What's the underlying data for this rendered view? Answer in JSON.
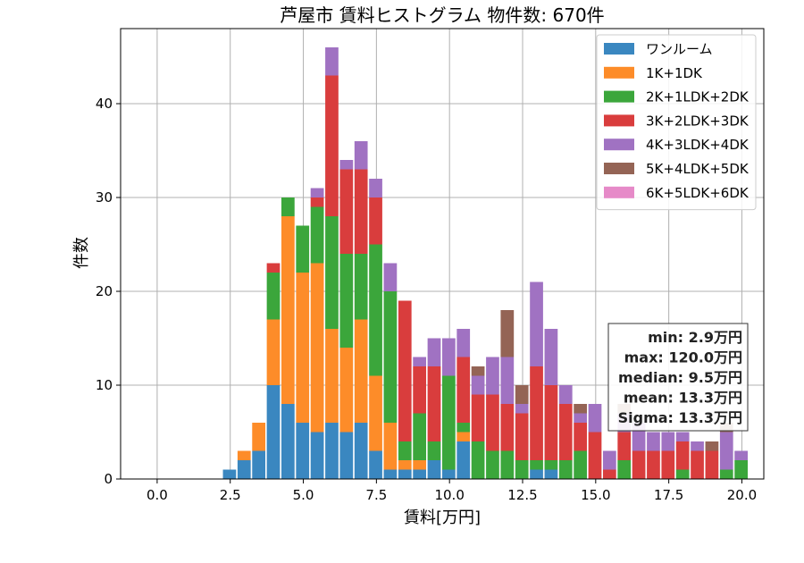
{
  "chart_data": {
    "type": "bar",
    "stacked": true,
    "title": "芦屋市 賃料ヒストグラム  物件数: 670件",
    "xlabel": "賃料[万円]",
    "ylabel": "件数",
    "xlim": [
      -1.25,
      20.75
    ],
    "ylim": [
      0,
      48
    ],
    "xticks": [
      0.0,
      2.5,
      5.0,
      7.5,
      10.0,
      12.5,
      15.0,
      17.5,
      20.0
    ],
    "xtick_labels": [
      "0.0",
      "2.5",
      "5.0",
      "7.5",
      "10.0",
      "12.5",
      "15.0",
      "17.5",
      "20.0"
    ],
    "yticks": [
      0,
      10,
      20,
      30,
      40
    ],
    "ytick_labels": [
      "0",
      "10",
      "20",
      "30",
      "40"
    ],
    "grid": true,
    "legend_position": "top-right",
    "bin_width": 0.5,
    "bin_starts": [
      2.25,
      2.75,
      3.25,
      3.75,
      4.25,
      4.75,
      5.25,
      5.75,
      6.25,
      6.75,
      7.25,
      7.75,
      8.25,
      8.75,
      9.25,
      9.75,
      10.25,
      10.75,
      11.25,
      11.75,
      12.25,
      12.75,
      13.25,
      13.75,
      14.25,
      14.75,
      15.25,
      15.75,
      16.25,
      16.75,
      17.25,
      17.75,
      18.25,
      18.75,
      19.25,
      19.75
    ],
    "series": [
      {
        "name": "ワンルーム",
        "color": "#3a87c0",
        "values": [
          1,
          2,
          3,
          10,
          8,
          6,
          5,
          6,
          5,
          6,
          3,
          1,
          1,
          1,
          2,
          1,
          4,
          0,
          0,
          0,
          0,
          1,
          1,
          0,
          0,
          0,
          0,
          0,
          0,
          0,
          0,
          0,
          0,
          0,
          0,
          0
        ]
      },
      {
        "name": "1K+1DK",
        "color": "#fd8c29",
        "values": [
          0,
          1,
          3,
          7,
          20,
          16,
          18,
          10,
          9,
          11,
          8,
          5,
          1,
          1,
          0,
          0,
          1,
          0,
          0,
          0,
          0,
          0,
          0,
          0,
          0,
          0,
          0,
          0,
          0,
          0,
          0,
          0,
          0,
          0,
          0,
          0
        ]
      },
      {
        "name": "2K+1LDK+2DK",
        "color": "#3ba63b",
        "values": [
          0,
          0,
          0,
          5,
          2,
          5,
          6,
          12,
          10,
          7,
          14,
          14,
          2,
          5,
          2,
          10,
          1,
          4,
          3,
          3,
          2,
          1,
          1,
          2,
          3,
          0,
          0,
          2,
          0,
          0,
          0,
          1,
          0,
          0,
          1,
          2
        ]
      },
      {
        "name": "3K+2LDK+3DK",
        "color": "#d93d3d",
        "values": [
          0,
          0,
          0,
          1,
          0,
          0,
          1,
          15,
          9,
          9,
          5,
          0,
          15,
          5,
          8,
          0,
          7,
          5,
          6,
          5,
          5,
          10,
          8,
          6,
          3,
          5,
          1,
          3,
          3,
          3,
          3,
          3,
          3,
          3,
          0,
          0
        ]
      },
      {
        "name": "4K+3LDK+4DK",
        "color": "#a072c2",
        "values": [
          0,
          0,
          0,
          0,
          0,
          0,
          1,
          3,
          1,
          3,
          2,
          3,
          0,
          1,
          3,
          4,
          3,
          2,
          4,
          5,
          1,
          9,
          6,
          2,
          1,
          3,
          2,
          2,
          3,
          2,
          2,
          1,
          1,
          0,
          4,
          1
        ]
      },
      {
        "name": "5K+4LDK+5DK",
        "color": "#946455",
        "values": [
          0,
          0,
          0,
          0,
          0,
          0,
          0,
          0,
          0,
          0,
          0,
          0,
          0,
          0,
          0,
          0,
          0,
          1,
          0,
          5,
          2,
          0,
          0,
          0,
          1,
          0,
          0,
          1,
          0,
          0,
          0,
          0,
          0,
          1,
          1,
          0
        ]
      },
      {
        "name": "6K+5LDK+6DK",
        "color": "#e68ac8",
        "values": [
          0,
          0,
          0,
          0,
          0,
          0,
          0,
          0,
          0,
          0,
          0,
          0,
          0,
          0,
          0,
          0,
          0,
          0,
          0,
          0,
          0,
          0,
          0,
          0,
          0,
          0,
          0,
          0,
          0,
          0,
          0,
          0,
          0,
          0,
          0,
          0
        ]
      }
    ],
    "stats": [
      "min: 2.9万円",
      "max: 120.0万円",
      "median: 9.5万円",
      "mean: 13.3万円",
      "Sigma: 13.3万円"
    ]
  }
}
